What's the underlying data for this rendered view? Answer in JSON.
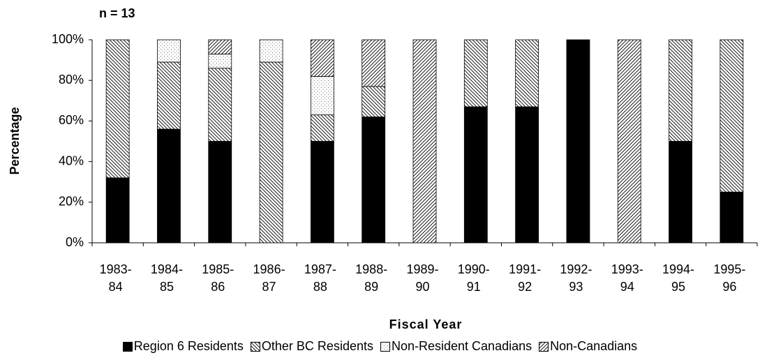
{
  "chart_data": {
    "type": "stacked-bar",
    "annotation": "n = 13",
    "y_label": "Percentage",
    "x_label": "Fiscal Year",
    "categories": [
      "1983-84",
      "1984-85",
      "1985-86",
      "1986-87",
      "1987-88",
      "1988-89",
      "1989-90",
      "1990-91",
      "1991-92",
      "1992-93",
      "1993-94",
      "1994-95",
      "1995-96"
    ],
    "series": [
      {
        "name": "Region 6 Residents",
        "color": "#000000",
        "pattern": "solid",
        "values": [
          32,
          56,
          50,
          0,
          50,
          62,
          0,
          67,
          67,
          100,
          0,
          50,
          25
        ]
      },
      {
        "name": "Other BC Residents",
        "color": "#000000",
        "pattern": "backslash",
        "values": [
          68,
          33,
          36,
          89,
          13,
          15,
          0,
          33,
          33,
          0,
          0,
          50,
          75
        ]
      },
      {
        "name": "Non-Resident Canadians",
        "color": "#000000",
        "pattern": "dots",
        "values": [
          0,
          11,
          7,
          11,
          19,
          0,
          0,
          0,
          0,
          0,
          0,
          0,
          0
        ]
      },
      {
        "name": "Non-Canadians",
        "color": "#000000",
        "pattern": "slash",
        "values": [
          0,
          0,
          7,
          0,
          18,
          23,
          100,
          0,
          0,
          0,
          100,
          0,
          0
        ]
      }
    ],
    "ylim": [
      0,
      100
    ],
    "yticks": [
      {
        "value": 0,
        "label": "0%"
      },
      {
        "value": 20,
        "label": "20%"
      },
      {
        "value": 40,
        "label": "40%"
      },
      {
        "value": 60,
        "label": "60%"
      },
      {
        "value": 80,
        "label": "80%"
      },
      {
        "value": 100,
        "label": "100%"
      }
    ],
    "grid": false,
    "legend": "bottom"
  }
}
